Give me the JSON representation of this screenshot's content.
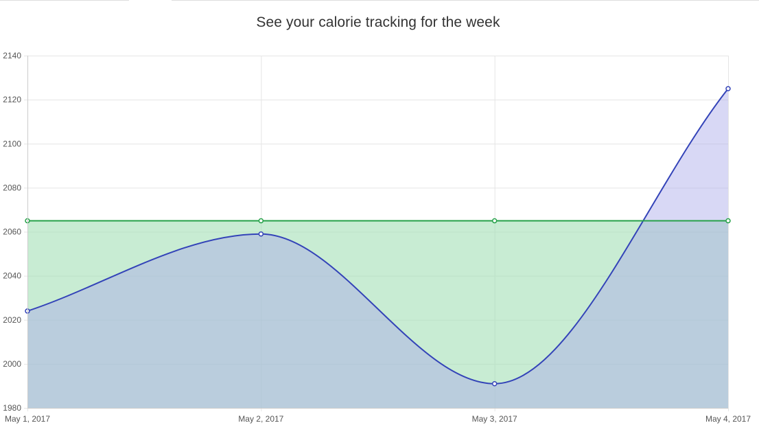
{
  "chart_data": {
    "type": "area",
    "title": "See your calorie tracking for the week",
    "xlabel": "",
    "ylabel": "",
    "x": [
      "May 1, 2017",
      "May 2, 2017",
      "May 3, 2017",
      "May 4, 2017"
    ],
    "yticks": [
      1980,
      2000,
      2020,
      2040,
      2060,
      2080,
      2100,
      2120,
      2140
    ],
    "ylim": [
      1980,
      2140
    ],
    "grid": true,
    "legend": "none",
    "series": [
      {
        "values": [
          2024,
          2059,
          1991,
          2125
        ],
        "line_color": "#3343b8",
        "fill_color": "#a8a8e8",
        "smooth": true
      },
      {
        "values": [
          2065,
          2065,
          2065,
          2065
        ],
        "line_color": "#24a148",
        "fill_color": "#a3e0b5",
        "smooth": false
      }
    ]
  }
}
